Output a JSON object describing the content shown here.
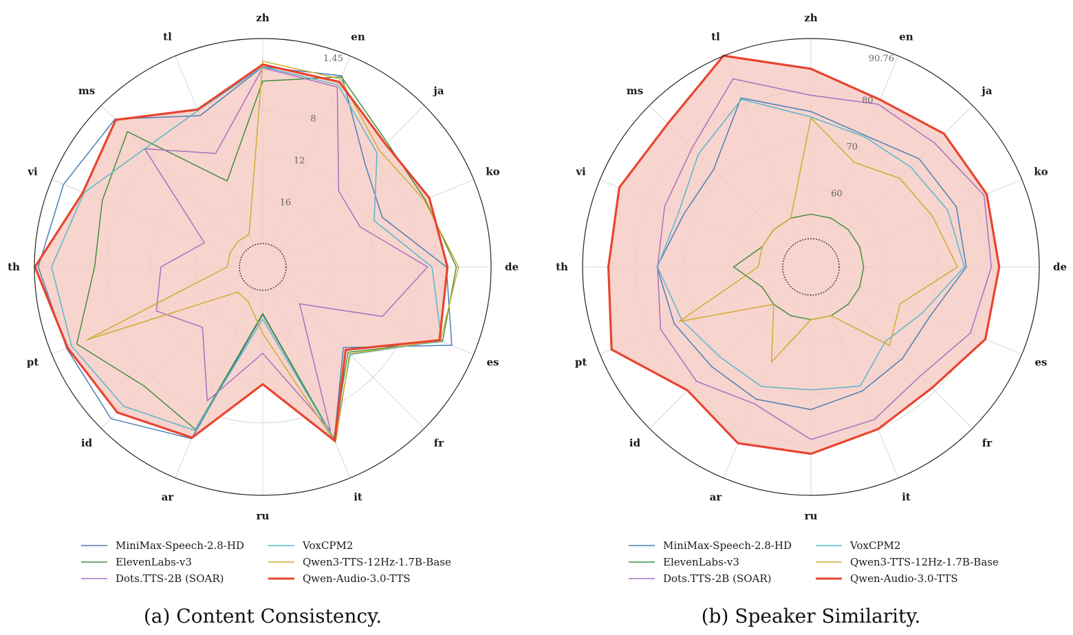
{
  "figure": {
    "captions": [
      "(a) Content Consistency.",
      "(b) Speaker Similarity."
    ]
  },
  "colors": {
    "MiniMax-Speech-2.8-HD": "#4a7fb5",
    "ElevenLabs-v3": "#3f8f3a",
    "Dots.TTS-2B (SOAR)": "#a770c2",
    "VoxCPM2": "#56b7c9",
    "Qwen3-TTS-12Hz-1.7B-Base": "#d1aa2e",
    "Qwen-Audio-3.0-TTS": "#e8442f",
    "fill": "#f6c9c2",
    "grid": "#d8d8d8",
    "outer_ring": "#222222",
    "label": "#1a1a1a",
    "tick": "#666666"
  },
  "chart_data": [
    {
      "type": "radar",
      "caption": "(a) Content Consistency.",
      "axes": [
        "zh",
        "en",
        "ja",
        "ko",
        "de",
        "es",
        "fr",
        "it",
        "ru",
        "ar",
        "id",
        "pt",
        "th",
        "vi",
        "ms",
        "tl"
      ],
      "rlim": [
        20,
        1.45
      ],
      "r_ticks": [
        16,
        12,
        8
      ],
      "outer_label": "1.45",
      "legend": [
        "MiniMax-Speech-2.8-HD",
        "ElevenLabs-v3",
        "Dots.TTS-2B (SOAR)",
        "VoxCPM2",
        "Qwen3-TTS-12Hz-1.7B-Base",
        "Qwen-Audio-3.0-TTS"
      ],
      "fill_series": "Qwen-Audio-3.0-TTS",
      "series": [
        {
          "name": "MiniMax-Speech-2.8-HD",
          "values": [
            4.0,
            3.4,
            9.0,
            10.4,
            5.5,
            3.6,
            11.8,
            5.2,
            17.8,
            5.3,
            2.7,
            2.9,
            1.8,
            2.6,
            3.2,
            7.3
          ]
        },
        {
          "name": "ElevenLabs-v3",
          "values": [
            5.3,
            3.5,
            6.2,
            6.2,
            4.6,
            4.5,
            11.2,
            5.3,
            17.9,
            6.2,
            6.9,
            3.9,
            6.9,
            6.4,
            4.8,
            13.7
          ]
        },
        {
          "name": "Dots.TTS-2B (SOAR)",
          "values": [
            4.1,
            4.5,
            12.4,
            12.6,
            7.2,
            10.4,
            17.4,
            6.1,
            14.3,
            9.0,
            14.4,
            11.7,
            12.9,
            16.4,
            7.0,
            11.0
          ]
        },
        {
          "name": "VoxCPM2",
          "values": [
            4.0,
            4.3,
            7.5,
            11.2,
            6.8,
            4.6,
            10.9,
            5.2,
            17.4,
            6.1,
            4.3,
            3.4,
            3.0,
            4.6,
            7.0,
            6.8
          ]
        },
        {
          "name": "Qwen3-TTS-12Hz-1.7B-Base",
          "values": [
            3.5,
            3.7,
            7.2,
            6.3,
            4.4,
            4.7,
            11.0,
            4.9,
            16.1,
            18.7,
            18.9,
            4.9,
            18.9,
            18.9,
            18.9,
            18.9
          ]
        },
        {
          "name": "Qwen-Audio-3.0-TTS",
          "values": [
            3.8,
            4.0,
            6.4,
            5.8,
            5.4,
            4.8,
            11.5,
            5.1,
            11.5,
            5.4,
            3.5,
            3.0,
            1.5,
            4.5,
            3.3,
            6.7
          ]
        }
      ]
    },
    {
      "type": "radar",
      "caption": "(b) Speaker Similarity.",
      "axes": [
        "zh",
        "en",
        "ja",
        "ko",
        "de",
        "es",
        "fr",
        "it",
        "ru",
        "ar",
        "id",
        "pt",
        "th",
        "vi",
        "ms",
        "tl"
      ],
      "rlim": [
        50,
        90.76
      ],
      "r_ticks": [
        60,
        70,
        80
      ],
      "outer_label": "90.76",
      "legend": [
        "MiniMax-Speech-2.8-HD",
        "ElevenLabs-v3",
        "Dots.TTS-2B (SOAR)",
        "VoxCPM2",
        "Qwen3-TTS-12Hz-1.7B-Base",
        "Qwen-Audio-3.0-TTS"
      ],
      "fill_series": "Qwen-Audio-3.0-TTS",
      "series": [
        {
          "name": "MiniMax-Speech-2.8-HD",
          "values": [
            75.9,
            73.2,
            75.4,
            76.3,
            75.9,
            70.5,
            70.6,
            71.6,
            73.3,
            73.4,
            72.9,
            74.4,
            75.6,
            72.3,
            72.3,
            81.5
          ]
        },
        {
          "name": "ElevenLabs-v3",
          "values": [
            55.0,
            55.0,
            55.0,
            55.0,
            55.0,
            55.0,
            55.0,
            55.0,
            55.0,
            55.0,
            55.0,
            55.0,
            60.0,
            55.0,
            55.0,
            55.0
          ]
        },
        {
          "name": "Dots.TTS-2B (SOAR)",
          "values": [
            79.2,
            80.1,
            79.9,
            82.4,
            81.0,
            79.4,
            75.7,
            77.9,
            79.4,
            74.4,
            77.2,
            77.4,
            75.5,
            76.5,
            78.5,
            85.7
          ]
        },
        {
          "name": "VoxCPM2",
          "values": [
            74.8,
            72.9,
            73.0,
            74.4,
            75.5,
            68.8,
            65.7,
            70.5,
            69.3,
            70.6,
            70.3,
            72.7,
            75.5,
            73.4,
            76.7,
            81.2
          ]
        },
        {
          "name": "Qwen3-TTS-12Hz-1.7B-Base",
          "values": [
            74.6,
            67.3,
            69.8,
            71.1,
            74.1,
            63.9,
            66.9,
            55.0,
            55.0,
            65.2,
            55.0,
            73.3,
            55.0,
            55.0,
            55.0,
            55.0
          ]
        },
        {
          "name": "Qwen-Audio-3.0-TTS",
          "values": [
            84.6,
            81.1,
            82.6,
            83.0,
            82.6,
            82.7,
            79.1,
            80.0,
            82.3,
            83.1,
            79.8,
            88.2,
            85.5,
            86.5,
            85.5,
            90.8
          ]
        }
      ]
    }
  ]
}
